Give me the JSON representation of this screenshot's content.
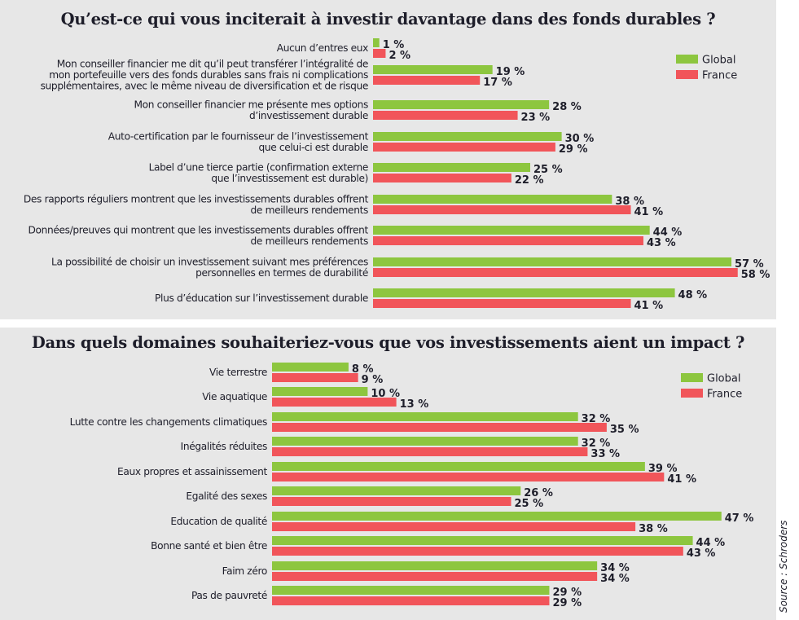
{
  "source": "Source : Schroders",
  "colors": {
    "global": "#8dc63f",
    "france": "#f1555a"
  },
  "chart_data": [
    {
      "type": "bar",
      "orientation": "horizontal",
      "title": "Qu’est-ce qui vous inciterait à investir davantage dans des fonds durables ?",
      "xlabel": "",
      "ylabel": "",
      "unit": "%",
      "xlim": [
        0,
        60
      ],
      "grid": false,
      "legend": {
        "position": "top-right",
        "entries": [
          "Global",
          "France"
        ]
      },
      "categories": [
        [
          "Aucun d’entres eux"
        ],
        [
          "Mon conseiller financier me dit qu’il peut transférer l’intégralité de",
          "mon portefeuille vers des fonds durables sans frais ni complications",
          "supplémentaires, avec le même niveau de diversification et de risque"
        ],
        [
          "Mon conseiller financier me présente mes options",
          "d’investissement durable"
        ],
        [
          "Auto-certification par le fournisseur de l’investissement",
          "que celui-ci est durable"
        ],
        [
          "Label d’une tierce partie (confirmation externe",
          "que l’investissement est durable)"
        ],
        [
          "Des rapports réguliers montrent que les investissements durables offrent",
          "de meilleurs rendements"
        ],
        [
          "Données/preuves qui montrent que les investissements durables offrent",
          "de meilleurs rendements"
        ],
        [
          "La possibilité de choisir un investissement suivant mes préférences",
          "personnelles en termes de durabilité"
        ],
        [
          "Plus d’éducation sur l’investissement durable"
        ]
      ],
      "series": [
        {
          "name": "Global",
          "values": [
            1,
            19,
            28,
            30,
            25,
            38,
            44,
            57,
            48
          ]
        },
        {
          "name": "France",
          "values": [
            2,
            17,
            23,
            29,
            22,
            41,
            43,
            58,
            41
          ]
        }
      ]
    },
    {
      "type": "bar",
      "orientation": "horizontal",
      "title": "Dans quels domaines souhaiteriez-vous que vos investissements aient un impact ?",
      "xlabel": "",
      "ylabel": "",
      "unit": "%",
      "xlim": [
        0,
        50
      ],
      "grid": false,
      "legend": {
        "position": "top-right",
        "entries": [
          "Global",
          "France"
        ]
      },
      "categories": [
        [
          "Vie terrestre"
        ],
        [
          "Vie aquatique"
        ],
        [
          "Lutte contre les changements climatiques"
        ],
        [
          "Inégalités réduites"
        ],
        [
          "Eaux propres et assainissement"
        ],
        [
          "Egalité des sexes"
        ],
        [
          "Education de qualité"
        ],
        [
          "Bonne santé et bien être"
        ],
        [
          "Faim zéro"
        ],
        [
          "Pas de pauvreté"
        ]
      ],
      "series": [
        {
          "name": "Global",
          "values": [
            8,
            10,
            32,
            32,
            39,
            26,
            47,
            44,
            34,
            29
          ]
        },
        {
          "name": "France",
          "values": [
            9,
            13,
            35,
            33,
            41,
            25,
            38,
            43,
            34,
            29
          ]
        }
      ]
    }
  ]
}
